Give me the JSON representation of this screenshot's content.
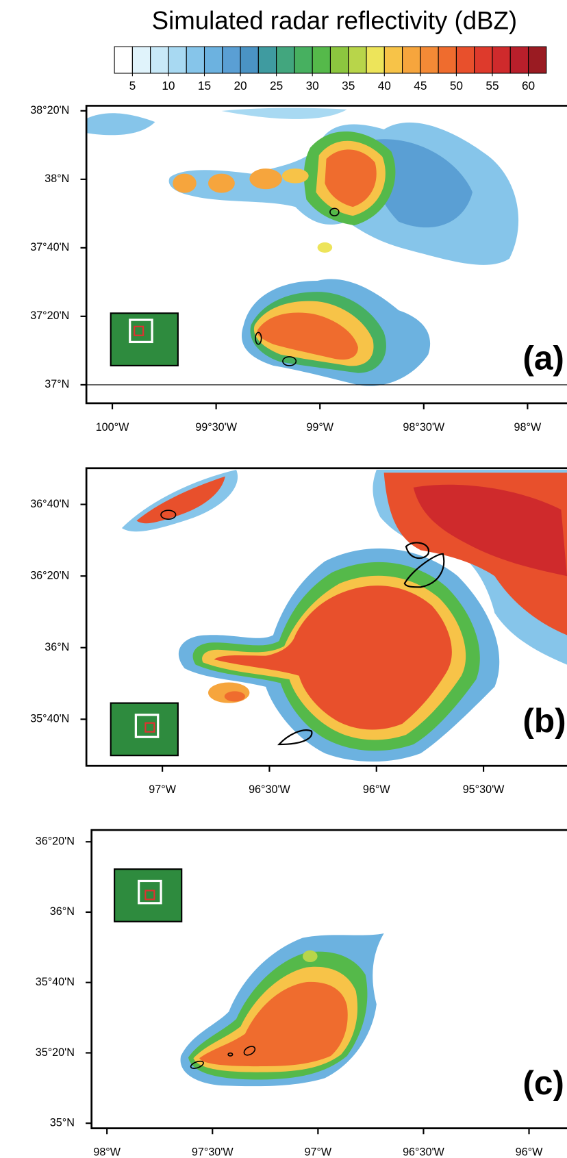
{
  "colorbar": {
    "title": "Simulated radar reflectivity (dBZ)",
    "clim": [
      2.5,
      62.5
    ],
    "colors": [
      "#ffffff",
      "#e0f3fb",
      "#c8e9f8",
      "#a8d9f2",
      "#86c5ea",
      "#6cb2e0",
      "#5a9fd4",
      "#4a93c4",
      "#3f9ba0",
      "#42a67e",
      "#47b060",
      "#55b94a",
      "#8cc63f",
      "#b8d54a",
      "#ede45a",
      "#f7c348",
      "#f6a53d",
      "#f48a36",
      "#ef6c2e",
      "#e8502c",
      "#de3a2c",
      "#cf2a2c",
      "#b81f2b",
      "#9a1b22"
    ],
    "ticks": [
      5,
      10,
      15,
      20,
      25,
      30,
      35,
      40,
      45,
      50,
      55,
      60
    ]
  },
  "panels": [
    {
      "label": "(a)",
      "xlim": [
        -100.125,
        -97.81
      ],
      "ylim": [
        36.91,
        38.358
      ],
      "xticks": [
        {
          "value": -100,
          "label": "100°W"
        },
        {
          "value": -99.5,
          "label": "99°30'W"
        },
        {
          "value": -99,
          "label": "99°W"
        },
        {
          "value": -98.5,
          "label": "98°30'W"
        },
        {
          "value": -98,
          "label": "98°W"
        }
      ],
      "yticks": [
        {
          "value": 37,
          "label": "37°N"
        },
        {
          "value": 37.3333,
          "label": "37°20'N"
        },
        {
          "value": 37.6667,
          "label": "37°40'N"
        },
        {
          "value": 38,
          "label": "38°N"
        },
        {
          "value": 38.3333,
          "label": "38°20'N"
        }
      ]
    },
    {
      "label": "(b)",
      "xlim": [
        -97.355,
        -95.11
      ],
      "ylim": [
        35.45,
        36.835
      ],
      "xticks": [
        {
          "value": -97,
          "label": "97°W"
        },
        {
          "value": -96.5,
          "label": "96°30'W"
        },
        {
          "value": -96,
          "label": "96°W"
        },
        {
          "value": -95.5,
          "label": "95°30'W"
        }
      ],
      "yticks": [
        {
          "value": 35.6667,
          "label": "35°40'N"
        },
        {
          "value": 36,
          "label": "36°N"
        },
        {
          "value": 36.3333,
          "label": "36°20'N"
        },
        {
          "value": 36.6667,
          "label": "36°40'N"
        }
      ]
    },
    {
      "label": "(c)",
      "xlim": [
        -98.073,
        -95.82
      ],
      "ylim": [
        34.976,
        36.389
      ],
      "xticks": [
        {
          "value": -98,
          "label": "98°W"
        },
        {
          "value": -97.5,
          "label": "97°30'W"
        },
        {
          "value": -97,
          "label": "97°W"
        },
        {
          "value": -96.5,
          "label": "96°30'W"
        },
        {
          "value": -96,
          "label": "96°W"
        }
      ],
      "yticks": [
        {
          "value": 35,
          "label": "35°N"
        },
        {
          "value": 35.3333,
          "label": "35°20'N"
        },
        {
          "value": 35.6667,
          "label": "35°40'N"
        },
        {
          "value": 36,
          "label": "36°N"
        },
        {
          "value": 36.3333,
          "label": "36°20'N"
        }
      ]
    }
  ]
}
